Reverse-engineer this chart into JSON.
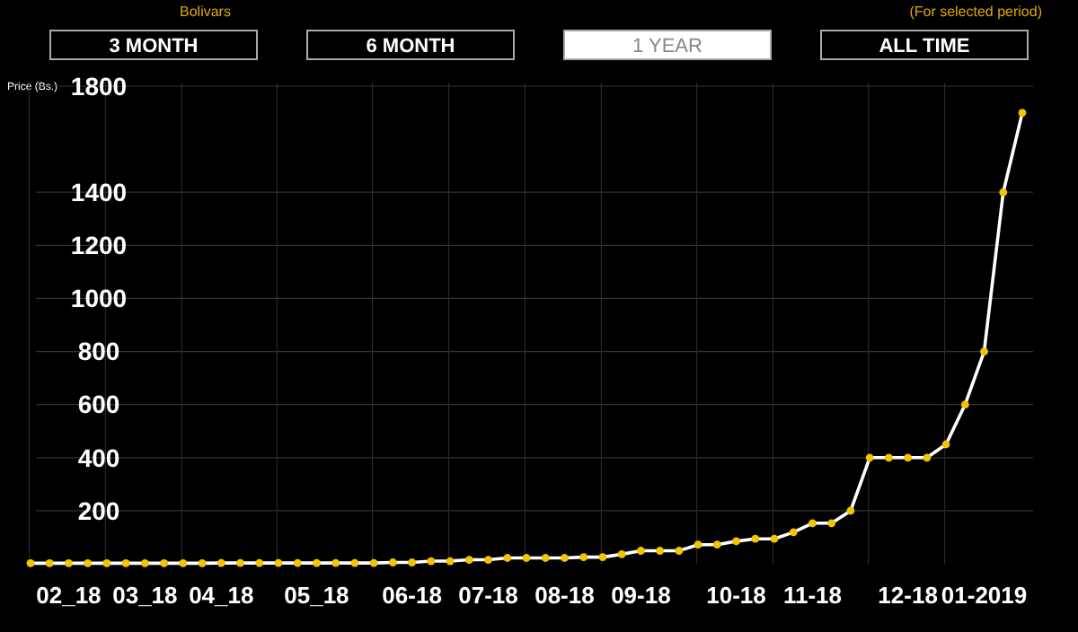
{
  "chart_data": {
    "type": "line",
    "ylabel": "Price (Bs.)",
    "annotations": [
      "Bolivars",
      "(For selected period)",
      "3 MONTH",
      "6 MONTH",
      "1 YEAR",
      "ALL TIME"
    ],
    "categories": [
      null,
      null,
      "02_18",
      null,
      null,
      null,
      "03_18",
      null,
      null,
      null,
      "04_18",
      null,
      null,
      null,
      null,
      "05_18",
      null,
      null,
      null,
      null,
      "06-18",
      null,
      null,
      null,
      "07-18",
      null,
      null,
      null,
      "08-18",
      null,
      null,
      null,
      "09-18",
      null,
      null,
      null,
      null,
      "10-18",
      null,
      null,
      null,
      "11-18",
      null,
      null,
      null,
      null,
      "12-18",
      null,
      null,
      null,
      "01-2019",
      null,
      null
    ],
    "series": [
      {
        "color": "#ffffff",
        "colors": [
          "#f5c400",
          "#f5c400",
          "#f5c400",
          "#f5c400",
          "#f5c400",
          "#f5c400",
          "#f5c400",
          "#f5c400",
          "#f5c400",
          "#f5c400",
          "#f5c400",
          "#f5c400",
          "#f5c400",
          "#f5c400",
          "#f5c400",
          "#f5c400",
          "#f5c400",
          "#f5c400",
          "#f5c400",
          "#f5c400",
          "#f5c400",
          "#f5c400",
          "#f5c400",
          "#f5c400",
          "#f5c400",
          "#f5c400",
          "#f5c400",
          "#f5c400",
          "#f5c400",
          "#f5c400",
          "#f5c400",
          "#f5c400",
          "#f5c400",
          "#f5c400",
          "#f5c400",
          "#f5c400",
          "#f5c400",
          "#f5c400",
          "#f5c400",
          "#f5c400",
          "#f5c400",
          "#f5c400",
          "#f5c400",
          "#f5c400",
          "#f5c400",
          "#f5c400",
          "#f5c400",
          "#f5c400",
          "#f5c400",
          "#f5c400",
          "#f5c400",
          "#f5c400",
          "#f5c400"
        ],
        "values": [
          2,
          2,
          2,
          2,
          2,
          2,
          2,
          2,
          2,
          2,
          3,
          3,
          3,
          3,
          3,
          3,
          3,
          3,
          3,
          5,
          5,
          10,
          10,
          15,
          15,
          22,
          22,
          22,
          22,
          25,
          25,
          36,
          49,
          49,
          49,
          72,
          72,
          85,
          94,
          94,
          119,
          153,
          153,
          200,
          400,
          400,
          400,
          400,
          450,
          600,
          800,
          1400,
          1700
        ]
      }
    ],
    "ylim": [
      0,
      1800
    ],
    "yticks": [
      200,
      400,
      600,
      800,
      1000,
      1200,
      1400,
      1800
    ],
    "grid": true,
    "marker": "circle",
    "line_style": "solid"
  }
}
